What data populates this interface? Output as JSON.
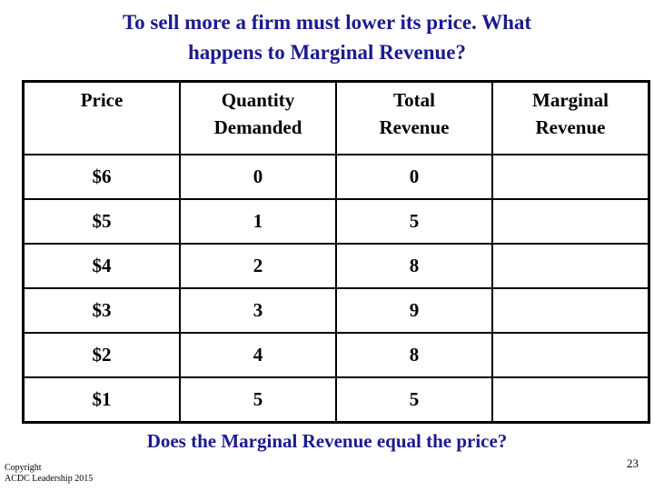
{
  "slide": {
    "title_lines": [
      "To sell more a firm must lower its price. What",
      "happens to Marginal Revenue?"
    ],
    "table": {
      "headers": [
        "Price",
        "Quantity\nDemanded",
        "Total\nRevenue",
        "Marginal\nRevenue"
      ],
      "rows": [
        {
          "price": "$6",
          "quantity_demanded": "0",
          "total_revenue": "0",
          "marginal_revenue": ""
        },
        {
          "price": "$5",
          "quantity_demanded": "1",
          "total_revenue": "5",
          "marginal_revenue": ""
        },
        {
          "price": "$4",
          "quantity_demanded": "2",
          "total_revenue": "8",
          "marginal_revenue": ""
        },
        {
          "price": "$3",
          "quantity_demanded": "3",
          "total_revenue": "9",
          "marginal_revenue": ""
        },
        {
          "price": "$2",
          "quantity_demanded": "4",
          "total_revenue": "8",
          "marginal_revenue": ""
        },
        {
          "price": "$1",
          "quantity_demanded": "5",
          "total_revenue": "5",
          "marginal_revenue": ""
        }
      ]
    },
    "question": "Does the Marginal Revenue equal the price?",
    "footer": {
      "copyright": "Copyright\nACDC Leadership 2015",
      "page_number": "23"
    },
    "colors": {
      "title_text": "#1b1b8f",
      "body_text": "#000000",
      "table_border": "#000000",
      "background": "#ffffff"
    }
  }
}
